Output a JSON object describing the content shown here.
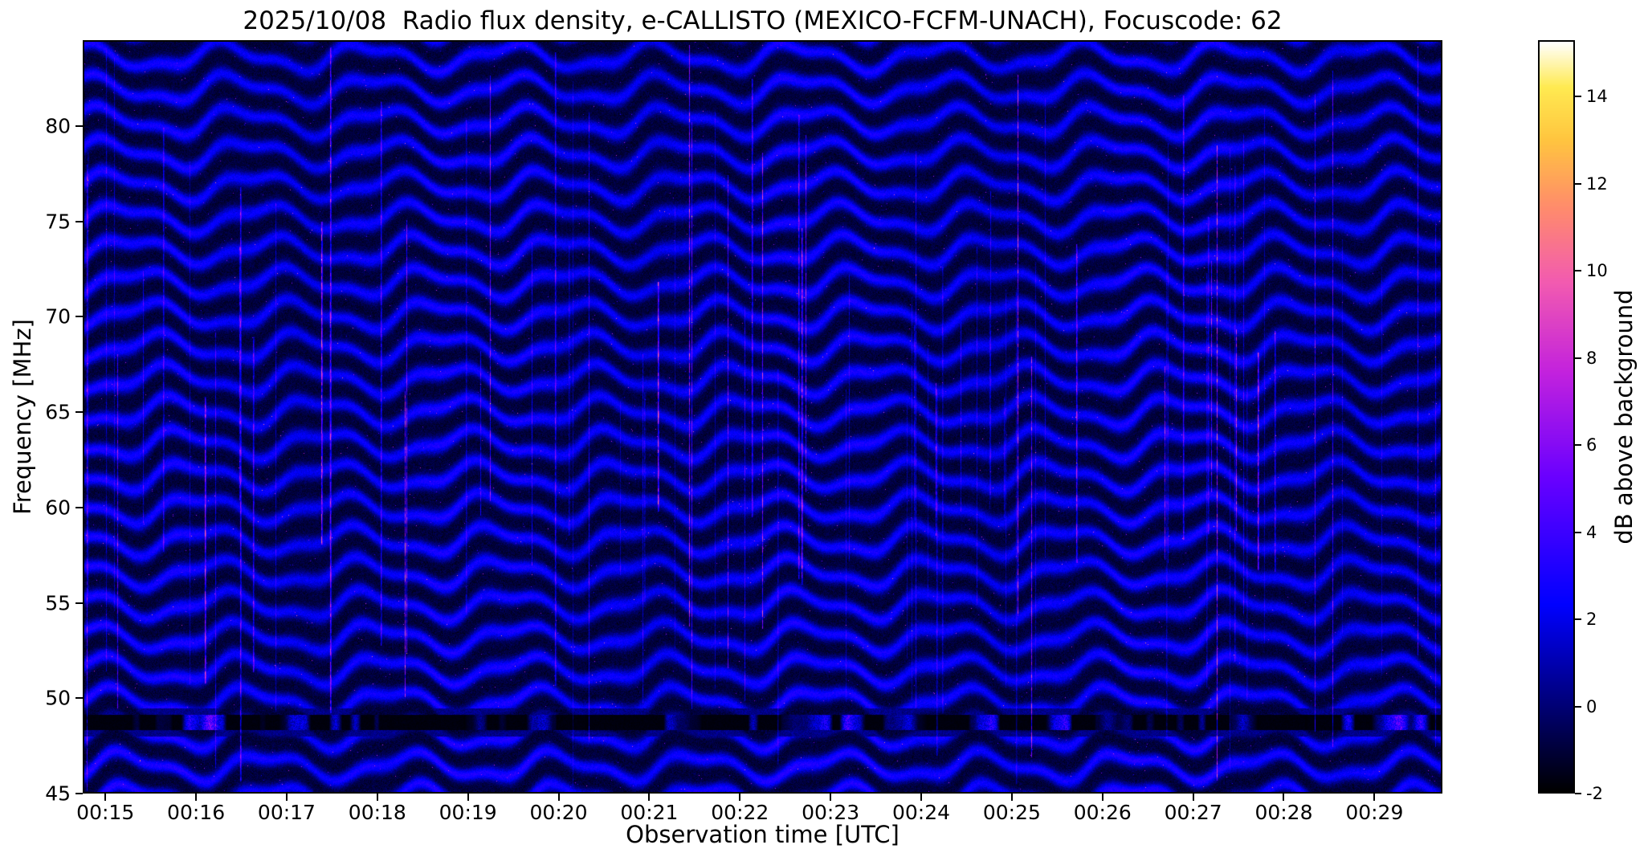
{
  "figure": {
    "title": "2025/10/08  Radio flux density, e-CALLISTO (MEXICO-FCFM-UNACH), Focuscode: 62"
  },
  "chart_data": {
    "type": "heatmap",
    "title": "2025/10/08  Radio flux density, e-CALLISTO (MEXICO-FCFM-UNACH), Focuscode: 62",
    "xlabel": "Observation time [UTC]",
    "ylabel": "Frequency [MHz]",
    "x_tick_labels": [
      "00:15",
      "00:16",
      "00:17",
      "00:18",
      "00:19",
      "00:20",
      "00:21",
      "00:22",
      "00:23",
      "00:24",
      "00:25",
      "00:26",
      "00:27",
      "00:28",
      "00:29"
    ],
    "x_tick_seconds": [
      0,
      60,
      120,
      180,
      240,
      300,
      360,
      420,
      480,
      540,
      600,
      660,
      720,
      780,
      840
    ],
    "x_range_seconds": [
      -15,
      885
    ],
    "y_tick_values": [
      45,
      50,
      55,
      60,
      65,
      70,
      75,
      80
    ],
    "y_range_mhz": [
      45,
      84.5
    ],
    "grid": false,
    "legend": "none",
    "colorbar": {
      "label": "dB above background",
      "tick_values": [
        -2,
        0,
        2,
        4,
        6,
        8,
        10,
        12,
        14
      ],
      "range": [
        -2,
        15.3
      ],
      "colormap": "gnuplot2-like (black-blue-violet-magenta-pink-orange-yellow-white)",
      "colormap_stops": [
        {
          "v": 0.0,
          "c": "#000000"
        },
        {
          "v": 0.25,
          "c": "#0000ff"
        },
        {
          "v": 0.42,
          "c": "#6a00ff"
        },
        {
          "v": 0.56,
          "c": "#c322dd"
        },
        {
          "v": 0.68,
          "c": "#f25bb0"
        },
        {
          "v": 0.78,
          "c": "#ff8c6b"
        },
        {
          "v": 0.87,
          "c": "#ffc53f"
        },
        {
          "v": 0.94,
          "c": "#ffea51"
        },
        {
          "v": 1.0,
          "c": "#ffffff"
        }
      ]
    },
    "pattern": {
      "description": "Dynamic radio spectrogram: dark navy background with quasi-horizontal blue interference fringes that undulate in time; intermittent strong RFI band near 48.6 MHz; narrow vertical magenta RFI streaks; faint magenta speckle noise.",
      "fringe_spacing_mhz": 1.7,
      "wave_period_s": 95,
      "wave_secondary_period_s": 41,
      "wave_amplitude_mhz": 0.6,
      "wave_secondary_amplitude_mhz": 0.25,
      "wave_freq_phase_rad_per_mhz": 0.22,
      "base_level_db": -1.0,
      "fringe_peak_db": 3.6,
      "noise_sigma_db": 0.4,
      "speckle_probability": 0.0015,
      "speckle_db": [
        3,
        9
      ],
      "rfi_band_mhz": [
        48.25,
        49.05
      ],
      "rfi_line_count": 90,
      "rfi_line_db": [
        2,
        9.5
      ],
      "seed": 1337
    },
    "features": [
      "Quasi-horizontal ionospheric/interference fringes spaced about 1.7 MHz, wavering with a ~95 s period across the whole 45-84.5 MHz band",
      "Strong intermittent RFI channel near 48.6 MHz appearing as a black strip with bright magenta bursts",
      "Numerous narrow vertical magenta RFI streaks distributed over the 15-minute observation",
      "Scattered faint magenta speckle noise over the blue fringe pattern"
    ]
  }
}
